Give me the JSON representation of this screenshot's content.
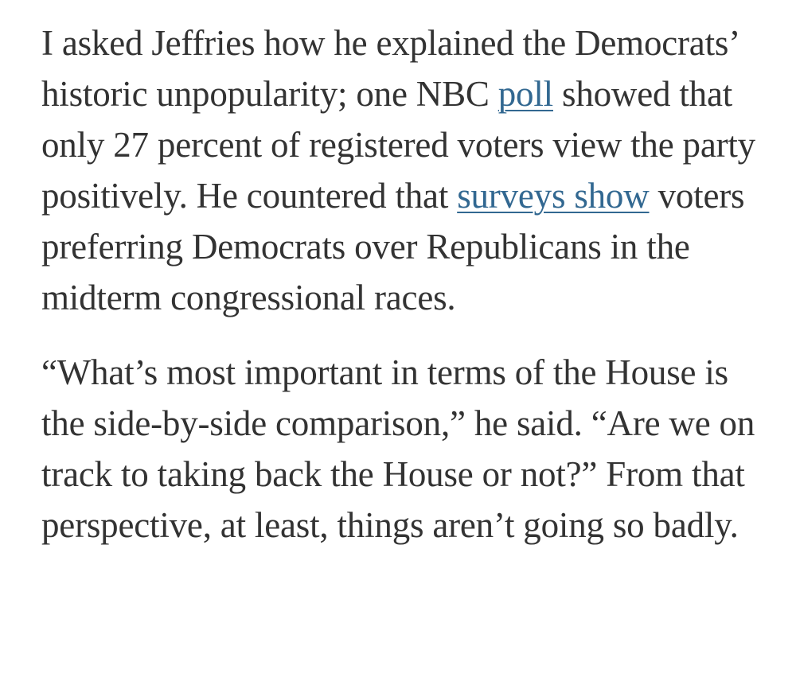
{
  "article": {
    "paragraphs": [
      {
        "segments": [
          {
            "type": "text",
            "text": "I asked Jeffries how he explained the Democrats’ historic unpopularity; one NBC "
          },
          {
            "type": "link",
            "text": "poll"
          },
          {
            "type": "text",
            "text": " showed that only 27 percent of registered voters view the party positively. He countered that "
          },
          {
            "type": "link",
            "text": "surveys show"
          },
          {
            "type": "text",
            "text": " voters preferring Democrats over Republicans in the midterm congressional races."
          }
        ]
      },
      {
        "segments": [
          {
            "type": "text",
            "text": "“What’s most important in terms of the House is the side-by-side comparison,” he said. “Are we on track to taking back the House or not?” From that perspective, at least, things aren’t going so badly."
          }
        ]
      }
    ]
  },
  "colors": {
    "body_text": "#333333",
    "link": "#326891",
    "background": "#ffffff"
  }
}
